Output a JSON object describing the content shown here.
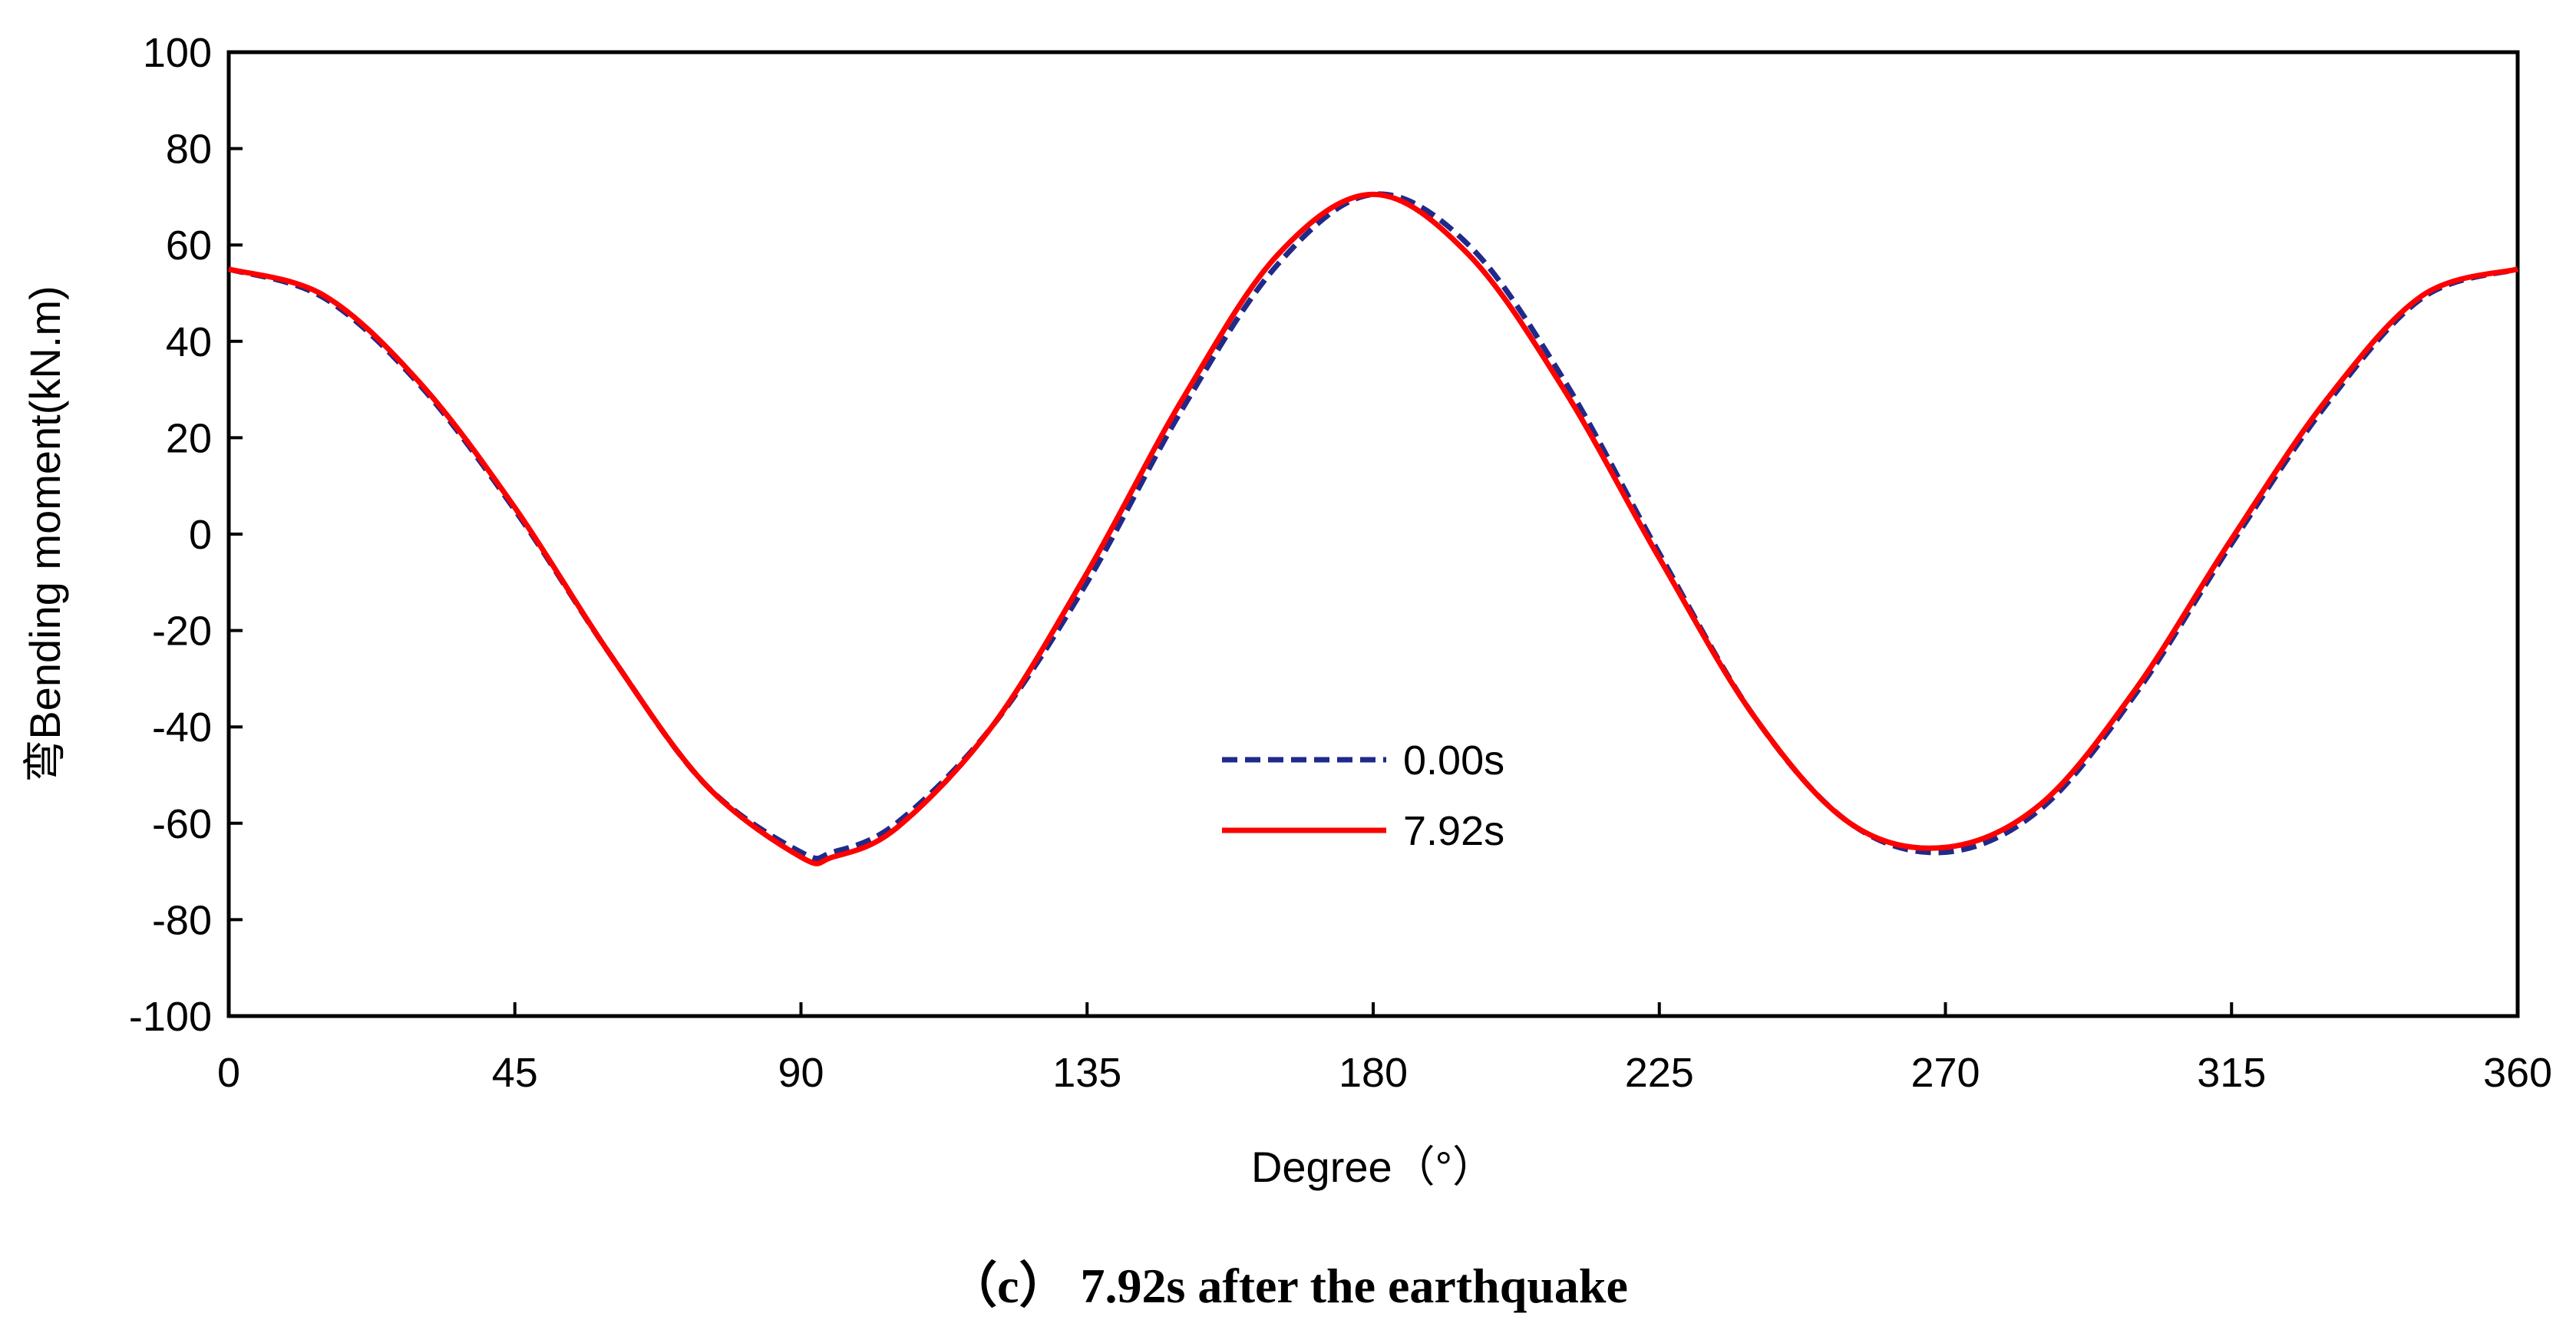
{
  "chart_data": {
    "type": "line",
    "title": "",
    "xlabel": "Degree（°）",
    "ylabel": "弯Bending moment(kN.m)",
    "xlim": [
      0,
      360
    ],
    "ylim": [
      -100,
      100
    ],
    "x_ticks": [
      0,
      45,
      90,
      135,
      180,
      225,
      270,
      315,
      360
    ],
    "y_ticks": [
      100,
      80,
      60,
      40,
      20,
      0,
      -20,
      -40,
      -60,
      -80,
      -100
    ],
    "grid": false,
    "legend_position": "center",
    "caption": "（c） 7.92s after the earthquake",
    "series": [
      {
        "name": "0.00s",
        "color": "#1f2a8a",
        "style": "dashed",
        "x": [
          0,
          15,
          30,
          45,
          60,
          75,
          90,
          95,
          105,
          120,
          135,
          150,
          165,
          180,
          195,
          210,
          225,
          240,
          255,
          270,
          285,
          300,
          315,
          330,
          345,
          360
        ],
        "y": [
          55,
          49,
          31,
          5,
          -25,
          -52,
          -66,
          -66,
          -60,
          -40,
          -10,
          26,
          56,
          70.5,
          60,
          32,
          -4,
          -38,
          -60,
          -66,
          -57,
          -33,
          -2,
          27,
          49,
          55
        ]
      },
      {
        "name": "7.92s",
        "color": "#ff0000",
        "style": "solid",
        "x": [
          0,
          15,
          30,
          45,
          60,
          75,
          90,
          95,
          105,
          120,
          135,
          150,
          165,
          180,
          195,
          210,
          225,
          240,
          255,
          270,
          285,
          300,
          315,
          330,
          345,
          360
        ],
        "y": [
          55,
          49.5,
          31.5,
          5.5,
          -25,
          -52,
          -67,
          -67,
          -61,
          -40,
          -8,
          28,
          58,
          70.5,
          58,
          30,
          -5,
          -38,
          -60,
          -65,
          -56,
          -32,
          -1,
          28,
          49.5,
          55
        ]
      }
    ]
  }
}
